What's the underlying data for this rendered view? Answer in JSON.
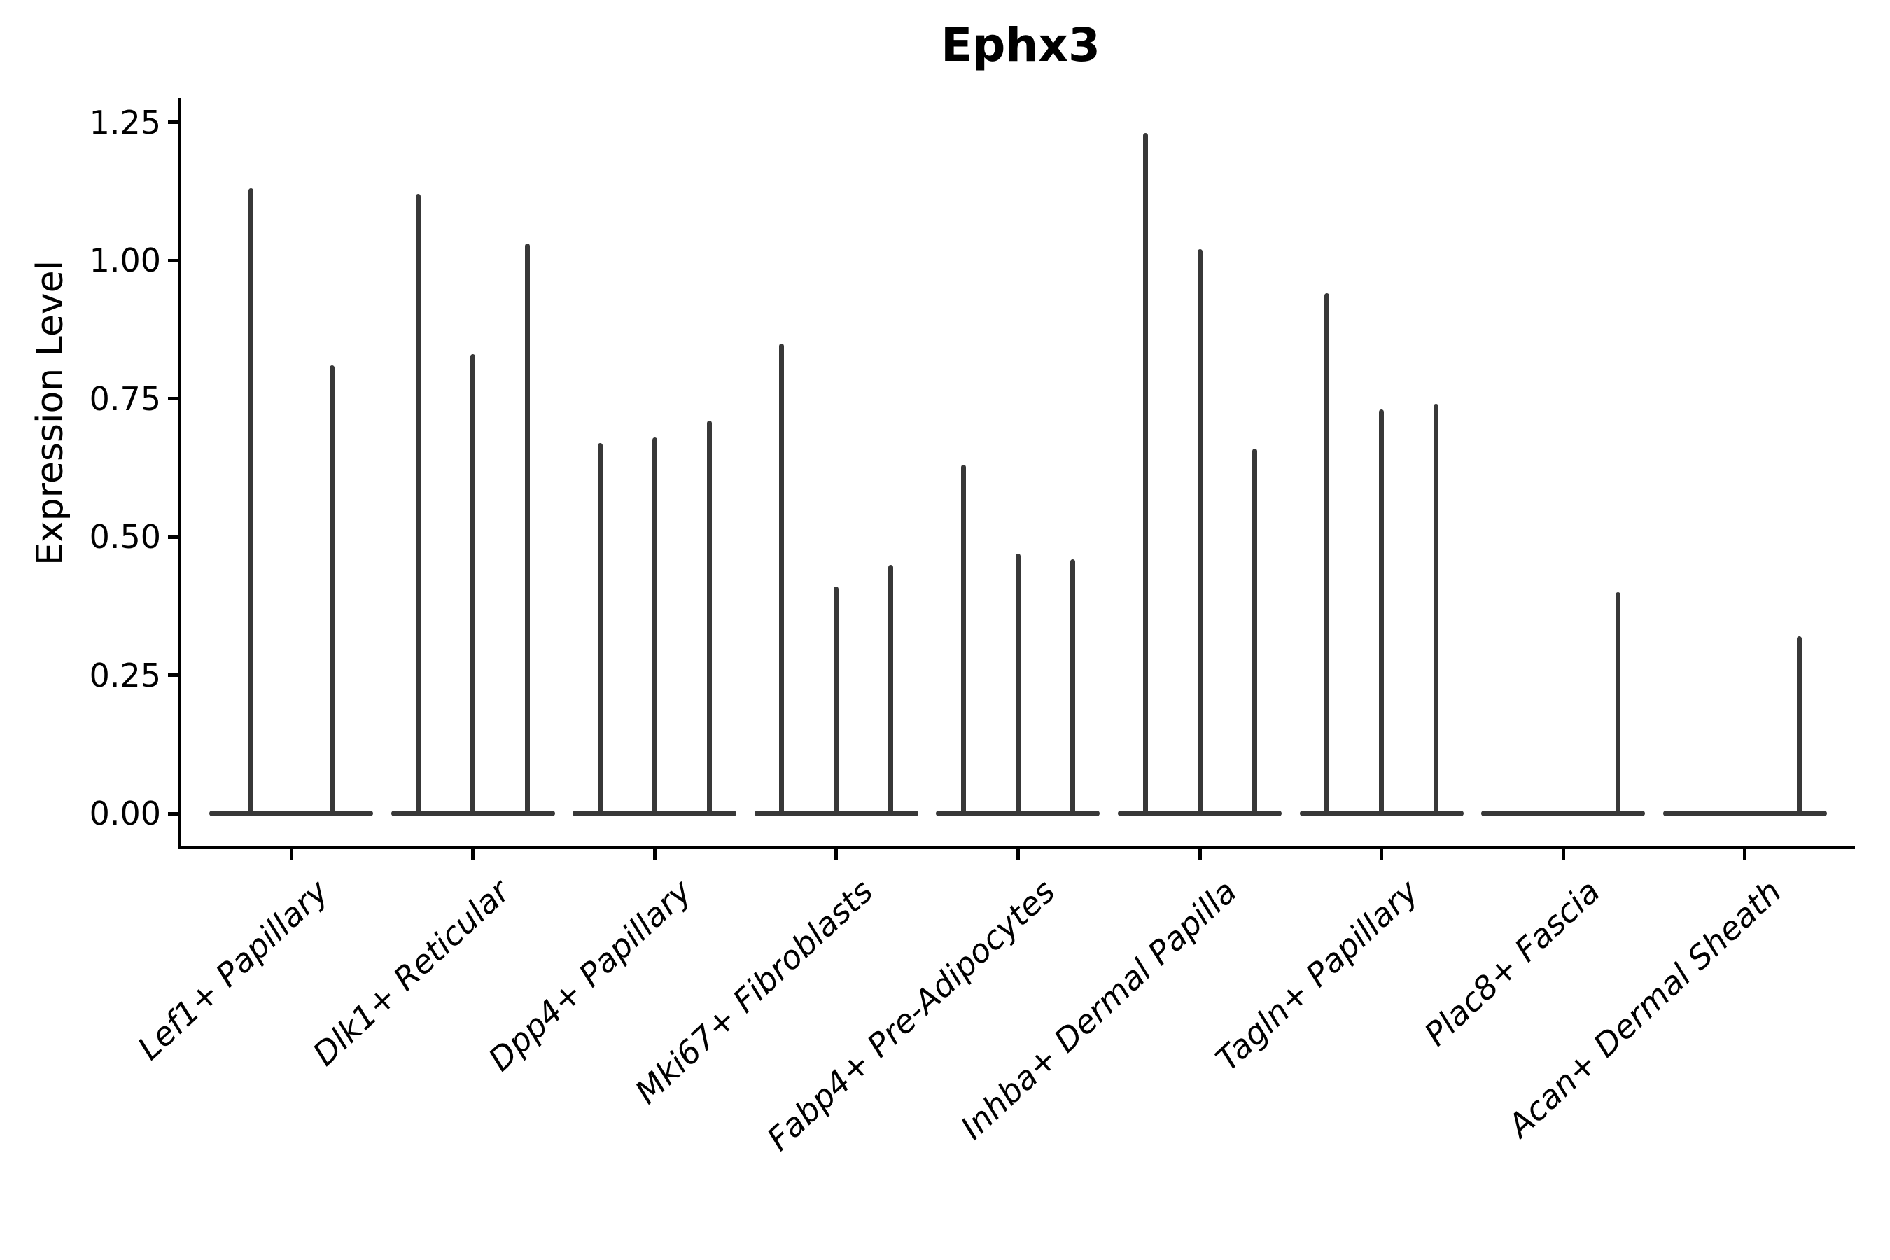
{
  "chart_data": {
    "type": "violin",
    "title": "Ephx3",
    "ylabel": "Expression Level",
    "xlabel": "",
    "yticks": [
      0.0,
      0.25,
      0.5,
      0.75,
      1.0,
      1.25
    ],
    "ylim": [
      -0.06,
      1.29
    ],
    "grid": false,
    "legend": "none",
    "violin_color": "#383838",
    "axis_color": "#000000",
    "categories": [
      "Lef1+ Papillary",
      "Dlk1+ Reticular",
      "Dpp4+ Papillary",
      "Mki67+ Fibroblasts",
      "Fabp4+ Pre-Adipocytes",
      "Inhba+ Dermal Papilla",
      "Tagln+ Papillary",
      "Plac8+ Fascia",
      "Acan+ Dermal Sheath"
    ],
    "groups": [
      {
        "category": "Lef1+ Papillary",
        "violins": [
          {
            "peak": 1.13
          },
          {
            "peak": 0.81
          }
        ]
      },
      {
        "category": "Dlk1+ Reticular",
        "violins": [
          {
            "peak": 1.12
          },
          {
            "peak": 0.83
          },
          {
            "peak": 1.03
          }
        ]
      },
      {
        "category": "Dpp4+ Papillary",
        "violins": [
          {
            "peak": 0.67
          },
          {
            "peak": 0.68
          },
          {
            "peak": 0.71
          }
        ]
      },
      {
        "category": "Mki67+ Fibroblasts",
        "violins": [
          {
            "peak": 0.85
          },
          {
            "peak": 0.41
          },
          {
            "peak": 0.45
          }
        ]
      },
      {
        "category": "Fabp4+ Pre-Adipocytes",
        "violins": [
          {
            "peak": 0.63
          },
          {
            "peak": 0.47
          },
          {
            "peak": 0.46
          }
        ]
      },
      {
        "category": "Inhba+ Dermal Papilla",
        "violins": [
          {
            "peak": 1.23
          },
          {
            "peak": 1.02
          },
          {
            "peak": 0.66
          }
        ]
      },
      {
        "category": "Tagln+ Papillary",
        "violins": [
          {
            "peak": 0.94
          },
          {
            "peak": 0.73
          },
          {
            "peak": 0.74
          }
        ]
      },
      {
        "category": "Plac8+ Fascia",
        "violins": [
          {
            "peak": 0.4
          }
        ]
      },
      {
        "category": "Acan+ Dermal Sheath",
        "violins": [
          {
            "peak": 0.32
          }
        ]
      }
    ]
  }
}
